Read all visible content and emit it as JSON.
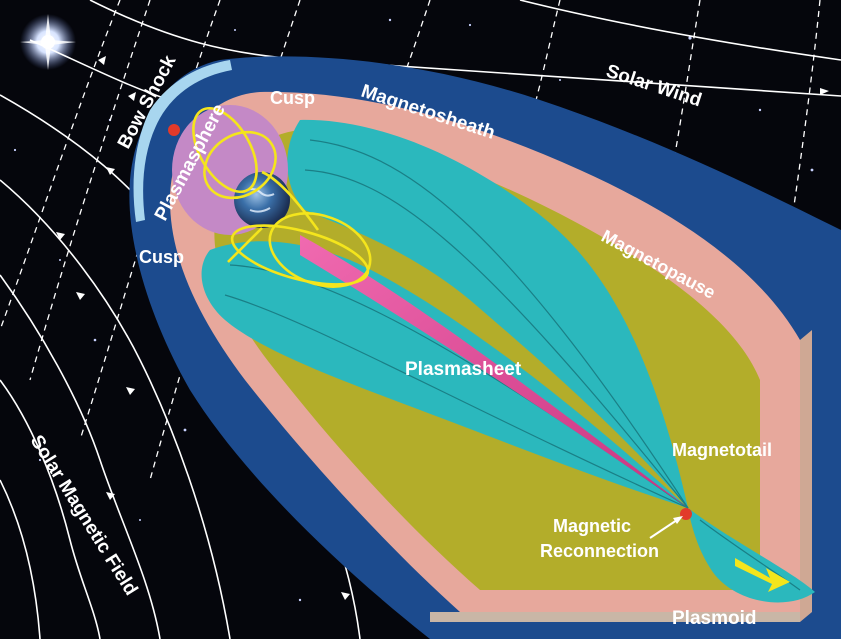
{
  "labels": {
    "bow_shock": "Bow Shock",
    "plasmasphere": "Plasmasphere",
    "cusp_top": "Cusp",
    "cusp_bottom": "Cusp",
    "magnetosheath": "Magnetosheath",
    "solar_wind": "Solar Wind",
    "magnetopause": "Magnetopause",
    "plasmasheet": "Plasmasheet",
    "magnetotail": "Magnetotail",
    "magnetic_reconnection_line1": "Magnetic",
    "magnetic_reconnection_line2": "Reconnection",
    "plasmoid": "Plasmoid",
    "solar_magnetic_field": "Solar Magnetic Field"
  },
  "colors": {
    "space": "#05060c",
    "magnetosheath_blue": "#1c4b8e",
    "magnetopause_pink": "#e7a89c",
    "tail_olive": "#b3ad2a",
    "lobe_cyan": "#2bb8bd",
    "plasmasphere_violet": "#c489c6",
    "plasmasheet_magenta": "#e0409a",
    "field_yellow": "#f4e51c",
    "reconnection_red": "#e23a2a"
  }
}
